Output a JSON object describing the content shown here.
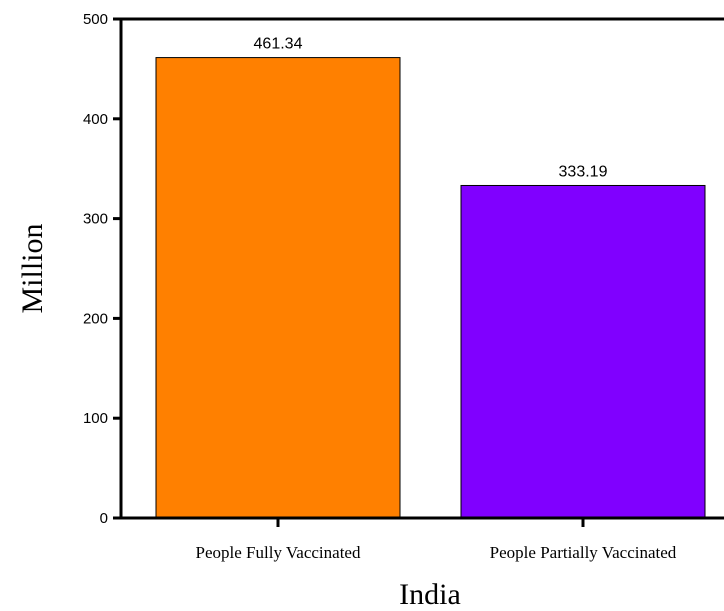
{
  "chart_data": {
    "type": "bar",
    "categories": [
      "People Fully Vaccinated",
      "People Partially Vaccinated"
    ],
    "values": [
      461.34,
      333.19
    ],
    "value_labels": [
      "461.34",
      "333.19"
    ],
    "bar_colors": [
      "#ff8000",
      "#8000ff"
    ],
    "xlabel": "India",
    "ylabel": "Million",
    "ylim": [
      0,
      500
    ],
    "yticks": [
      0,
      100,
      200,
      300,
      400,
      500
    ],
    "grid": false,
    "legend": "none"
  }
}
